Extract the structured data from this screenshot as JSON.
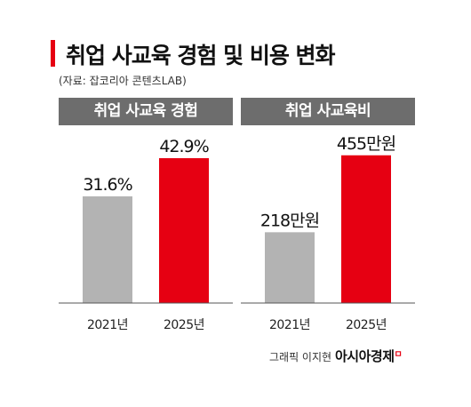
{
  "title": "취업 사교육 경험 및 비용 변화",
  "source": "(자료: 잡코리아 콘텐츠LAB)",
  "credit": {
    "graphic": "그래픽 이지현",
    "logo": "아시아경제",
    "logo_mark": "ㅁ"
  },
  "colors": {
    "accent": "#e60012",
    "bar_2021": "#b3b3b3",
    "header_bg": "#6d6d6d",
    "baseline": "#555555"
  },
  "chart_data": [
    {
      "type": "bar",
      "title": "취업 사교육 경험",
      "categories": [
        "2021년",
        "2025년"
      ],
      "values": [
        31.6,
        42.9
      ],
      "value_labels": [
        "31.6%",
        "42.9%"
      ],
      "unit": "%",
      "ylim": [
        0,
        50
      ],
      "grid": false,
      "legend": "none"
    },
    {
      "type": "bar",
      "title": "취업 사교육비",
      "categories": [
        "2021년",
        "2025년"
      ],
      "values": [
        218,
        455
      ],
      "value_labels": [
        "218만원",
        "455만원"
      ],
      "unit": "만원",
      "ylim": [
        0,
        520
      ],
      "grid": false,
      "legend": "none"
    }
  ]
}
